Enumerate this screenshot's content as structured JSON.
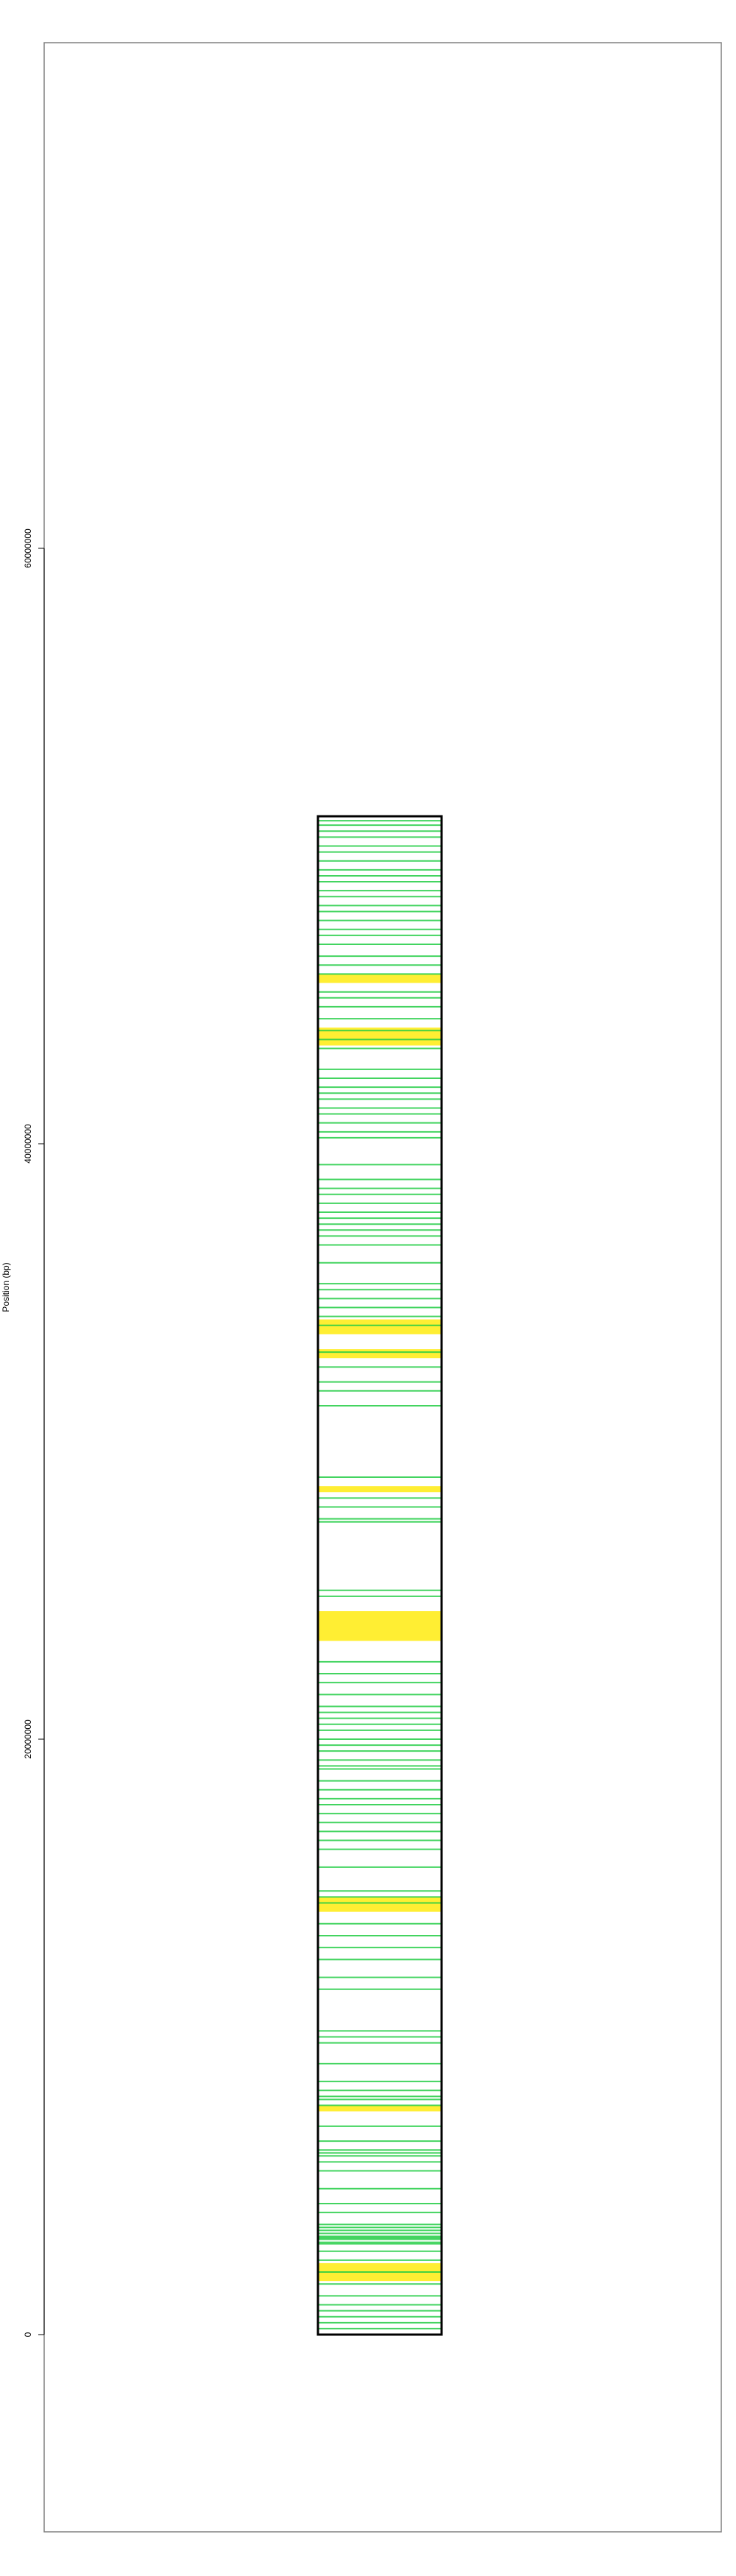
{
  "chart_data": {
    "type": "heatmap",
    "title": "",
    "xlabel": "",
    "ylabel": "Position (bp)",
    "ylim": [
      -6000000,
      77500000
    ],
    "y_ticks": [
      0,
      20000000,
      40000000,
      60000000
    ],
    "y_tick_labels": [
      "0",
      "20000000",
      "40000000",
      "60000000"
    ],
    "chromosome": {
      "start": 0,
      "end": 51000000
    },
    "colors": {
      "green": "#22cc44",
      "yellow": "#ffee33",
      "outline": "#000000",
      "frame": "#808080"
    },
    "green_marks": [
      200000,
      400000,
      600000,
      800000,
      1000000,
      1300000,
      1700000,
      2100000,
      2500000,
      2800000,
      3050000,
      3100000,
      3200000,
      3250000,
      3300000,
      3400000,
      3500000,
      3600000,
      3700000,
      4100000,
      4400000,
      4900000,
      5500000,
      5800000,
      6000000,
      6100000,
      6200000,
      6500000,
      7000000,
      7700000,
      7900000,
      8000000,
      8200000,
      8500000,
      9100000,
      9800000,
      10000000,
      10200000,
      11600000,
      12000000,
      12600000,
      13000000,
      13400000,
      13800000,
      14500000,
      14700000,
      14900000,
      15700000,
      16300000,
      16600000,
      16900000,
      17200000,
      17500000,
      17800000,
      18000000,
      18300000,
      18600000,
      19000000,
      19100000,
      19300000,
      19600000,
      19800000,
      20000000,
      20300000,
      20500000,
      20700000,
      20900000,
      21100000,
      21500000,
      21900000,
      22200000,
      22600000,
      24800000,
      25000000,
      27300000,
      27400000,
      27800000,
      28100000,
      28800000,
      31200000,
      31700000,
      32000000,
      32500000,
      33000000,
      33900000,
      34200000,
      34500000,
      34800000,
      35100000,
      35300000,
      36000000,
      36600000,
      36900000,
      37100000,
      37300000,
      37500000,
      37700000,
      38000000,
      38300000,
      38500000,
      38800000,
      39300000,
      40200000,
      40400000,
      40700000,
      41000000,
      41200000,
      41500000,
      41700000,
      41900000,
      42200000,
      42500000,
      43200000,
      43500000,
      43800000,
      44200000,
      44600000,
      44900000,
      45100000,
      45700000,
      46000000,
      46300000,
      46700000,
      47000000,
      47200000,
      47500000,
      47800000,
      48000000,
      48300000,
      48500000,
      48800000,
      49000000,
      49200000,
      49500000,
      49800000,
      50000000,
      50300000,
      50500000,
      50700000,
      50850000
    ],
    "yellow_bands": [
      [
        1800000,
        2400000
      ],
      [
        7500000,
        7700000
      ],
      [
        14200000,
        14700000
      ],
      [
        23300000,
        24300000
      ],
      [
        28300000,
        28500000
      ],
      [
        32800000,
        33100000
      ],
      [
        33600000,
        34100000
      ],
      [
        43300000,
        43900000
      ],
      [
        45400000,
        45700000
      ]
    ]
  }
}
